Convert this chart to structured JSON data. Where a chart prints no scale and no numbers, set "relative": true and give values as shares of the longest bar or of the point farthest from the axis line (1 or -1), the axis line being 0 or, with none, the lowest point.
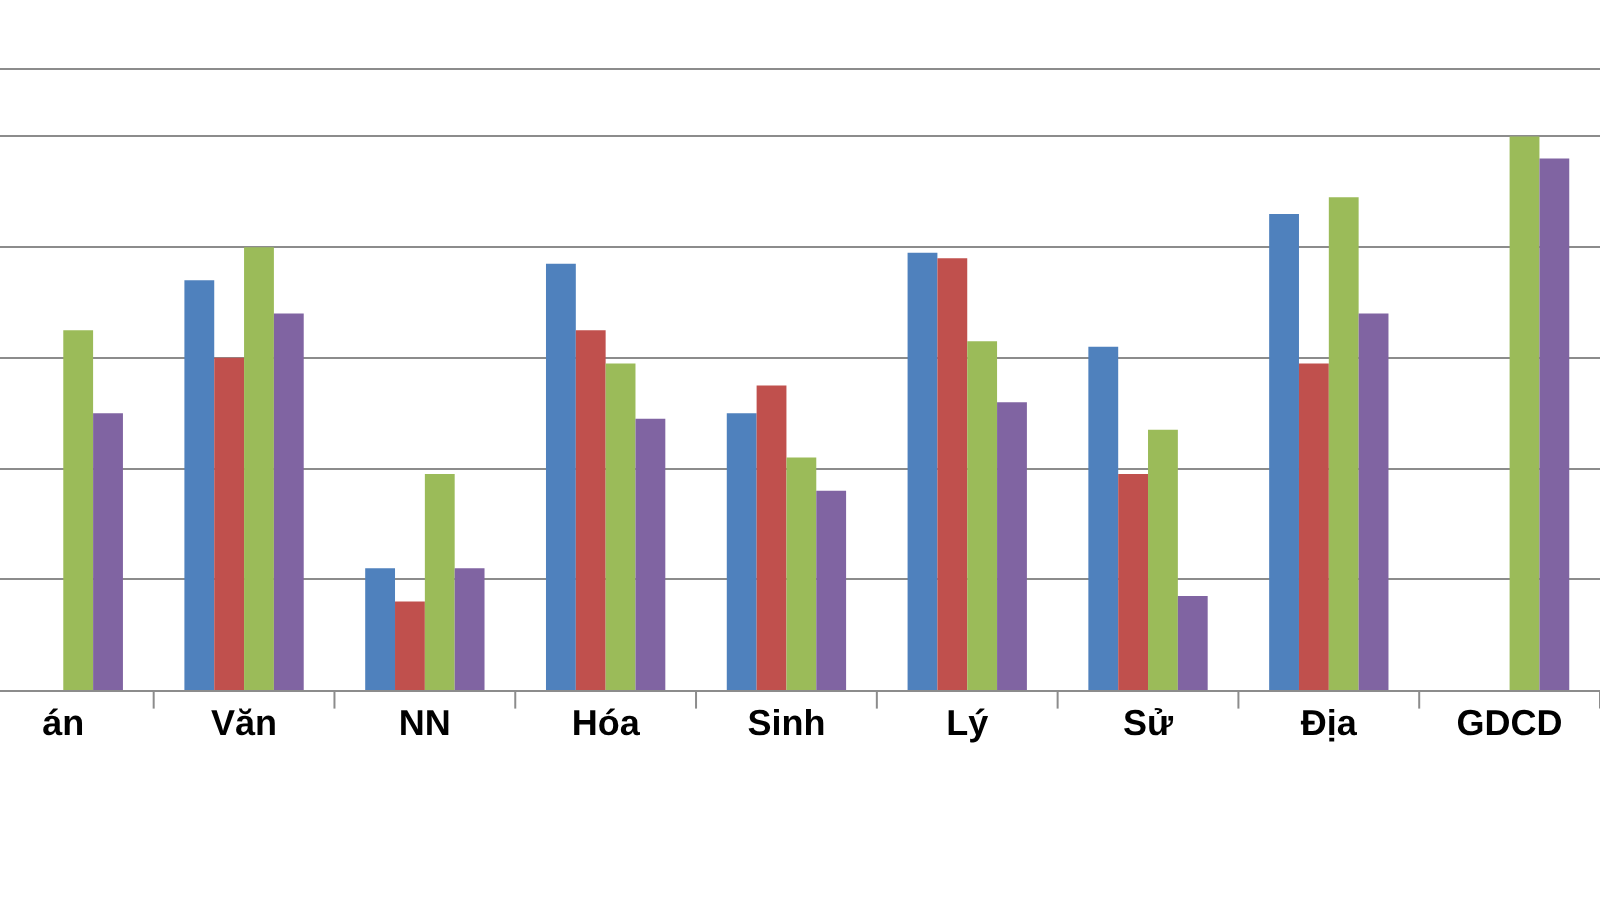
{
  "chart_data": {
    "type": "bar",
    "relative": true,
    "grid": "y",
    "categories": [
      "án",
      "Văn",
      "NN",
      "Hóa",
      "Sinh",
      "Lý",
      "Sử",
      "Địa",
      "GDCD"
    ],
    "series": [
      {
        "color": "#4f81bd",
        "values": [
          null,
          0.74,
          0.22,
          0.77,
          0.5,
          0.79,
          0.62,
          0.86,
          null
        ]
      },
      {
        "color": "#c0504d",
        "values": [
          null,
          0.6,
          0.16,
          0.65,
          0.55,
          0.78,
          0.39,
          0.59,
          null
        ]
      },
      {
        "color": "#9bbb59",
        "values": [
          0.65,
          0.8,
          0.39,
          0.59,
          0.42,
          0.63,
          0.47,
          0.89,
          1.0
        ]
      },
      {
        "color": "#8064a2",
        "values": [
          0.5,
          0.68,
          0.22,
          0.49,
          0.36,
          0.52,
          0.17,
          0.68,
          0.96
        ]
      }
    ]
  }
}
